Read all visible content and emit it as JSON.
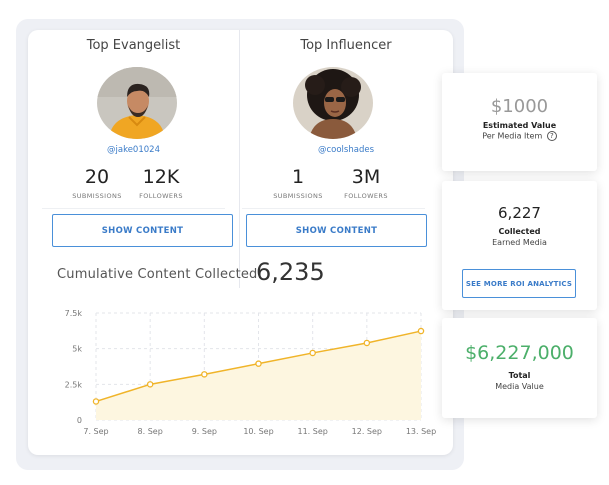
{
  "profiles": [
    {
      "title": "Top Evangelist",
      "handle": "@jake01024",
      "submissions": "20",
      "submissions_label": "SUBMISSIONS",
      "followers": "12K",
      "followers_label": "FOLLOWERS",
      "button": "SHOW CONTENT"
    },
    {
      "title": "Top Influencer",
      "handle": "@coolshades",
      "submissions": "1",
      "submissions_label": "SUBMISSIONS",
      "followers": "3M",
      "followers_label": "FOLLOWERS",
      "button": "SHOW CONTENT"
    }
  ],
  "cumulative": {
    "label": "Cumulative Content Collected:",
    "value": "6,235"
  },
  "chart_data": {
    "type": "area",
    "categories": [
      "7. Sep",
      "8. Sep",
      "9. Sep",
      "10. Sep",
      "11. Sep",
      "12. Sep",
      "13. Sep"
    ],
    "values": [
      1300,
      2500,
      3200,
      3950,
      4700,
      5400,
      6235
    ],
    "ylim": [
      0,
      7500
    ],
    "yticks": [
      "0",
      "2.5k",
      "5k",
      "7.5k"
    ],
    "ytick_values": [
      0,
      2500,
      5000,
      7500
    ],
    "grid": true,
    "colors": {
      "line": "#f0b429",
      "fill": "#fdf6e0",
      "grid": "#e3e5ea"
    }
  },
  "side_cards": {
    "estimated": {
      "value": "$1000",
      "label": "Estimated Value",
      "sub": "Per Media Item"
    },
    "collected": {
      "value": "6,227",
      "label": "Collected",
      "sub": "Earned Media",
      "button": "SEE MORE ROI ANALYTICS"
    },
    "total": {
      "value": "$6,227,000",
      "label": "Total",
      "sub": "Media Value"
    }
  },
  "icons": {
    "help": "question-circle-icon"
  },
  "colors": {
    "accent": "#4a90d9",
    "money_green": "#4caf6a"
  }
}
